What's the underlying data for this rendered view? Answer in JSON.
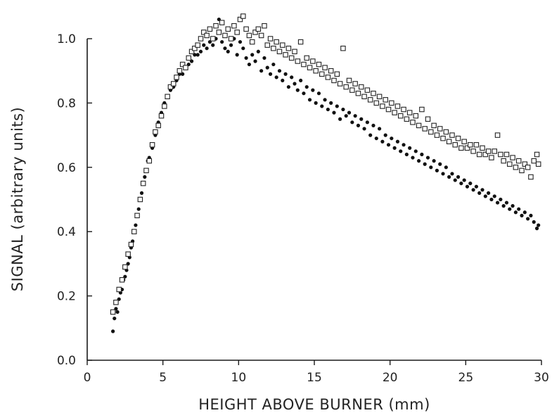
{
  "chart_data": {
    "type": "scatter",
    "title": "",
    "xlabel": "HEIGHT ABOVE BURNER  (mm)",
    "ylabel": "SIGNAL  (arbitrary units)",
    "xlim": [
      0,
      30
    ],
    "ylim": [
      0.0,
      1.08
    ],
    "x_ticks": [
      0,
      5,
      10,
      15,
      20,
      25,
      30
    ],
    "x_tick_labels": [
      "0",
      "5",
      "10",
      "15",
      "20",
      "25",
      "30"
    ],
    "y_ticks": [
      0.0,
      0.2,
      0.4,
      0.6,
      0.8,
      1.0
    ],
    "y_tick_labels": [
      "0.0",
      "0.2",
      "0.4",
      "0.6",
      "0.8",
      "1.0"
    ],
    "grid": false,
    "legend": "none",
    "series": [
      {
        "marker": "filled-circle",
        "color": "#111111",
        "points": [
          [
            1.7,
            0.09
          ],
          [
            1.8,
            0.13
          ],
          [
            1.9,
            0.16
          ],
          [
            2.0,
            0.15
          ],
          [
            2.1,
            0.19
          ],
          [
            2.2,
            0.21
          ],
          [
            2.3,
            0.22
          ],
          [
            2.4,
            0.25
          ],
          [
            2.5,
            0.26
          ],
          [
            2.6,
            0.28
          ],
          [
            2.7,
            0.3
          ],
          [
            2.8,
            0.32
          ],
          [
            2.9,
            0.35
          ],
          [
            3.0,
            0.37
          ],
          [
            3.1,
            0.4
          ],
          [
            3.2,
            0.42
          ],
          [
            3.3,
            0.45
          ],
          [
            3.4,
            0.47
          ],
          [
            3.5,
            0.5
          ],
          [
            3.6,
            0.52
          ],
          [
            3.7,
            0.55
          ],
          [
            3.8,
            0.57
          ],
          [
            3.9,
            0.59
          ],
          [
            4.0,
            0.62
          ],
          [
            4.1,
            0.63
          ],
          [
            4.3,
            0.66
          ],
          [
            4.5,
            0.7
          ],
          [
            4.7,
            0.74
          ],
          [
            4.9,
            0.77
          ],
          [
            5.1,
            0.8
          ],
          [
            5.3,
            0.82
          ],
          [
            5.5,
            0.84
          ],
          [
            5.7,
            0.85
          ],
          [
            5.9,
            0.87
          ],
          [
            6.1,
            0.89
          ],
          [
            6.3,
            0.89
          ],
          [
            6.5,
            0.91
          ],
          [
            6.7,
            0.92
          ],
          [
            6.9,
            0.93
          ],
          [
            7.1,
            0.95
          ],
          [
            7.3,
            0.95
          ],
          [
            7.5,
            0.96
          ],
          [
            7.7,
            0.98
          ],
          [
            7.9,
            0.97
          ],
          [
            8.1,
            0.99
          ],
          [
            8.3,
            0.98
          ],
          [
            8.5,
            1.0
          ],
          [
            8.7,
            1.06
          ],
          [
            8.9,
            0.99
          ],
          [
            9.1,
            0.97
          ],
          [
            9.3,
            0.96
          ],
          [
            9.5,
            0.98
          ],
          [
            9.7,
            1.0
          ],
          [
            9.9,
            0.95
          ],
          [
            10.1,
            0.99
          ],
          [
            10.3,
            0.97
          ],
          [
            10.5,
            0.94
          ],
          [
            10.7,
            0.92
          ],
          [
            10.9,
            0.95
          ],
          [
            11.1,
            0.93
          ],
          [
            11.3,
            0.96
          ],
          [
            11.5,
            0.9
          ],
          [
            11.7,
            0.94
          ],
          [
            11.9,
            0.91
          ],
          [
            12.1,
            0.89
          ],
          [
            12.3,
            0.92
          ],
          [
            12.5,
            0.88
          ],
          [
            12.7,
            0.9
          ],
          [
            12.9,
            0.87
          ],
          [
            13.1,
            0.89
          ],
          [
            13.3,
            0.85
          ],
          [
            13.5,
            0.88
          ],
          [
            13.7,
            0.86
          ],
          [
            13.9,
            0.84
          ],
          [
            14.1,
            0.87
          ],
          [
            14.3,
            0.83
          ],
          [
            14.5,
            0.85
          ],
          [
            14.7,
            0.81
          ],
          [
            14.9,
            0.84
          ],
          [
            15.1,
            0.8
          ],
          [
            15.3,
            0.83
          ],
          [
            15.5,
            0.79
          ],
          [
            15.7,
            0.81
          ],
          [
            15.9,
            0.78
          ],
          [
            16.1,
            0.8
          ],
          [
            16.3,
            0.77
          ],
          [
            16.5,
            0.79
          ],
          [
            16.7,
            0.75
          ],
          [
            16.9,
            0.78
          ],
          [
            17.1,
            0.76
          ],
          [
            17.3,
            0.77
          ],
          [
            17.5,
            0.74
          ],
          [
            17.7,
            0.76
          ],
          [
            17.9,
            0.73
          ],
          [
            18.1,
            0.75
          ],
          [
            18.3,
            0.72
          ],
          [
            18.5,
            0.74
          ],
          [
            18.7,
            0.7
          ],
          [
            18.9,
            0.73
          ],
          [
            19.1,
            0.69
          ],
          [
            19.3,
            0.72
          ],
          [
            19.5,
            0.68
          ],
          [
            19.7,
            0.7
          ],
          [
            19.9,
            0.67
          ],
          [
            20.1,
            0.69
          ],
          [
            20.3,
            0.66
          ],
          [
            20.5,
            0.68
          ],
          [
            20.7,
            0.65
          ],
          [
            20.9,
            0.67
          ],
          [
            21.1,
            0.64
          ],
          [
            21.3,
            0.66
          ],
          [
            21.5,
            0.63
          ],
          [
            21.7,
            0.65
          ],
          [
            21.9,
            0.62
          ],
          [
            22.1,
            0.64
          ],
          [
            22.3,
            0.61
          ],
          [
            22.5,
            0.63
          ],
          [
            22.7,
            0.6
          ],
          [
            22.9,
            0.62
          ],
          [
            23.1,
            0.59
          ],
          [
            23.3,
            0.61
          ],
          [
            23.5,
            0.58
          ],
          [
            23.7,
            0.6
          ],
          [
            23.9,
            0.57
          ],
          [
            24.1,
            0.58
          ],
          [
            24.3,
            0.56
          ],
          [
            24.5,
            0.57
          ],
          [
            24.7,
            0.55
          ],
          [
            24.9,
            0.56
          ],
          [
            25.1,
            0.54
          ],
          [
            25.3,
            0.55
          ],
          [
            25.5,
            0.53
          ],
          [
            25.7,
            0.54
          ],
          [
            25.9,
            0.52
          ],
          [
            26.1,
            0.53
          ],
          [
            26.3,
            0.51
          ],
          [
            26.5,
            0.52
          ],
          [
            26.7,
            0.5
          ],
          [
            26.9,
            0.51
          ],
          [
            27.1,
            0.49
          ],
          [
            27.3,
            0.5
          ],
          [
            27.5,
            0.48
          ],
          [
            27.7,
            0.49
          ],
          [
            27.9,
            0.47
          ],
          [
            28.1,
            0.48
          ],
          [
            28.3,
            0.46
          ],
          [
            28.5,
            0.47
          ],
          [
            28.7,
            0.45
          ],
          [
            28.9,
            0.46
          ],
          [
            29.1,
            0.44
          ],
          [
            29.3,
            0.45
          ],
          [
            29.5,
            0.43
          ],
          [
            29.7,
            0.41
          ],
          [
            29.8,
            0.42
          ]
        ]
      },
      {
        "marker": "open-square",
        "color": "#222222",
        "points": [
          [
            1.7,
            0.15
          ],
          [
            1.9,
            0.18
          ],
          [
            2.1,
            0.22
          ],
          [
            2.3,
            0.25
          ],
          [
            2.5,
            0.29
          ],
          [
            2.7,
            0.33
          ],
          [
            2.9,
            0.36
          ],
          [
            3.1,
            0.4
          ],
          [
            3.3,
            0.45
          ],
          [
            3.5,
            0.5
          ],
          [
            3.7,
            0.55
          ],
          [
            3.9,
            0.59
          ],
          [
            4.1,
            0.62
          ],
          [
            4.3,
            0.67
          ],
          [
            4.5,
            0.71
          ],
          [
            4.7,
            0.73
          ],
          [
            4.9,
            0.76
          ],
          [
            5.1,
            0.79
          ],
          [
            5.3,
            0.82
          ],
          [
            5.5,
            0.85
          ],
          [
            5.7,
            0.86
          ],
          [
            5.9,
            0.88
          ],
          [
            6.1,
            0.9
          ],
          [
            6.3,
            0.92
          ],
          [
            6.5,
            0.91
          ],
          [
            6.7,
            0.94
          ],
          [
            6.9,
            0.96
          ],
          [
            7.1,
            0.97
          ],
          [
            7.3,
            0.98
          ],
          [
            7.5,
            1.0
          ],
          [
            7.7,
            1.02
          ],
          [
            7.9,
            1.01
          ],
          [
            8.1,
            1.03
          ],
          [
            8.3,
            1.0
          ],
          [
            8.5,
            1.04
          ],
          [
            8.7,
            1.02
          ],
          [
            8.9,
            1.05
          ],
          [
            9.1,
            1.01
          ],
          [
            9.3,
            1.03
          ],
          [
            9.5,
            1.0
          ],
          [
            9.7,
            1.04
          ],
          [
            9.9,
            1.02
          ],
          [
            10.1,
            1.06
          ],
          [
            10.3,
            1.07
          ],
          [
            10.5,
            1.03
          ],
          [
            10.7,
            1.01
          ],
          [
            10.9,
            0.99
          ],
          [
            11.1,
            1.02
          ],
          [
            11.3,
            1.03
          ],
          [
            11.5,
            1.01
          ],
          [
            11.7,
            1.04
          ],
          [
            11.9,
            0.98
          ],
          [
            12.1,
            1.0
          ],
          [
            12.3,
            0.97
          ],
          [
            12.5,
            0.99
          ],
          [
            12.7,
            0.96
          ],
          [
            12.9,
            0.98
          ],
          [
            13.1,
            0.95
          ],
          [
            13.3,
            0.97
          ],
          [
            13.5,
            0.94
          ],
          [
            13.7,
            0.96
          ],
          [
            13.9,
            0.93
          ],
          [
            14.1,
            0.99
          ],
          [
            14.3,
            0.92
          ],
          [
            14.5,
            0.94
          ],
          [
            14.7,
            0.91
          ],
          [
            14.9,
            0.93
          ],
          [
            15.1,
            0.9
          ],
          [
            15.3,
            0.92
          ],
          [
            15.5,
            0.89
          ],
          [
            15.7,
            0.91
          ],
          [
            15.9,
            0.88
          ],
          [
            16.1,
            0.9
          ],
          [
            16.3,
            0.87
          ],
          [
            16.5,
            0.89
          ],
          [
            16.7,
            0.86
          ],
          [
            16.9,
            0.97
          ],
          [
            17.1,
            0.85
          ],
          [
            17.3,
            0.87
          ],
          [
            17.5,
            0.84
          ],
          [
            17.7,
            0.86
          ],
          [
            17.9,
            0.83
          ],
          [
            18.1,
            0.85
          ],
          [
            18.3,
            0.82
          ],
          [
            18.5,
            0.84
          ],
          [
            18.7,
            0.81
          ],
          [
            18.9,
            0.83
          ],
          [
            19.1,
            0.8
          ],
          [
            19.3,
            0.82
          ],
          [
            19.5,
            0.79
          ],
          [
            19.7,
            0.81
          ],
          [
            19.9,
            0.78
          ],
          [
            20.1,
            0.8
          ],
          [
            20.3,
            0.77
          ],
          [
            20.5,
            0.79
          ],
          [
            20.7,
            0.76
          ],
          [
            20.9,
            0.78
          ],
          [
            21.1,
            0.75
          ],
          [
            21.3,
            0.77
          ],
          [
            21.5,
            0.74
          ],
          [
            21.7,
            0.76
          ],
          [
            21.9,
            0.73
          ],
          [
            22.1,
            0.78
          ],
          [
            22.3,
            0.72
          ],
          [
            22.5,
            0.75
          ],
          [
            22.7,
            0.71
          ],
          [
            22.9,
            0.73
          ],
          [
            23.1,
            0.7
          ],
          [
            23.3,
            0.72
          ],
          [
            23.5,
            0.69
          ],
          [
            23.7,
            0.71
          ],
          [
            23.9,
            0.68
          ],
          [
            24.1,
            0.7
          ],
          [
            24.3,
            0.67
          ],
          [
            24.5,
            0.69
          ],
          [
            24.7,
            0.66
          ],
          [
            24.9,
            0.68
          ],
          [
            25.1,
            0.66
          ],
          [
            25.3,
            0.67
          ],
          [
            25.5,
            0.65
          ],
          [
            25.7,
            0.67
          ],
          [
            25.9,
            0.64
          ],
          [
            26.1,
            0.66
          ],
          [
            26.3,
            0.64
          ],
          [
            26.5,
            0.65
          ],
          [
            26.7,
            0.63
          ],
          [
            26.9,
            0.65
          ],
          [
            27.1,
            0.7
          ],
          [
            27.3,
            0.64
          ],
          [
            27.5,
            0.62
          ],
          [
            27.7,
            0.64
          ],
          [
            27.9,
            0.61
          ],
          [
            28.1,
            0.63
          ],
          [
            28.3,
            0.6
          ],
          [
            28.5,
            0.62
          ],
          [
            28.7,
            0.59
          ],
          [
            28.9,
            0.61
          ],
          [
            29.1,
            0.6
          ],
          [
            29.3,
            0.57
          ],
          [
            29.5,
            0.62
          ],
          [
            29.7,
            0.64
          ],
          [
            29.8,
            0.61
          ]
        ]
      }
    ]
  }
}
